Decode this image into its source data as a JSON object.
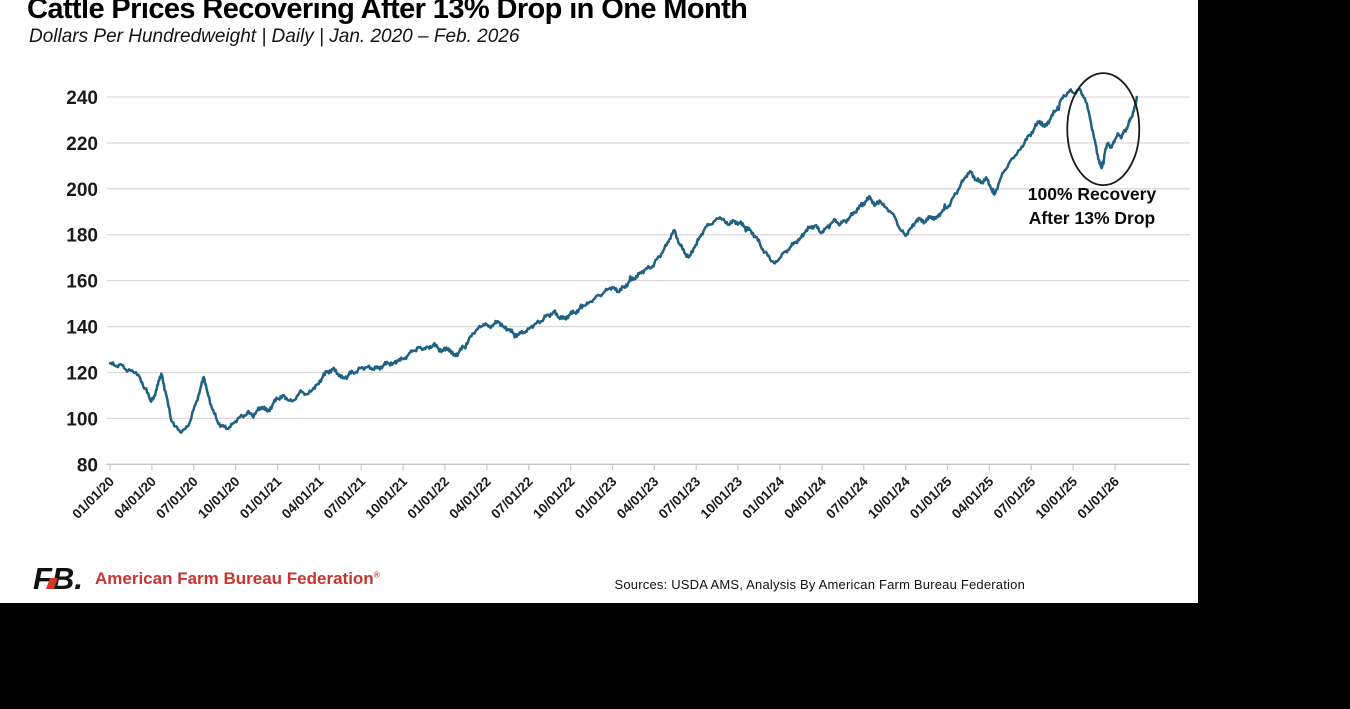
{
  "title": "Cattle Prices Recovering After 13% Drop in One Month",
  "subtitle": "Dollars Per Hundredweight | Daily | Jan. 2020 – Feb. 2026",
  "annotation": {
    "line1": "100% Recovery",
    "line2": "After 13% Drop"
  },
  "footer": {
    "logo_text": "FB.",
    "org_name": "American Farm Bureau Federation",
    "reg_mark": "®",
    "sources": "Sources: USDA AMS, Analysis By American Farm Bureau Federation"
  },
  "colors": {
    "line": "#1F6182",
    "grid": "#D9D9D9",
    "axis": "#C6C6C6",
    "tick_text": "#1a1a1a",
    "brand_red": "#C8352E",
    "annotation_ink": "#1a1a1a",
    "canvas": "#FFFFFF",
    "letterbox": "#000000"
  },
  "chart_data": {
    "type": "line",
    "title": "Cattle Prices Recovering After 13% Drop in One Month",
    "xlabel": "",
    "ylabel": "Dollars Per Hundredweight",
    "frequency": "Daily",
    "date_range": "Jan. 2020 – Feb. 2026",
    "ylim": [
      80,
      240
    ],
    "y_ticks": [
      240,
      220,
      200,
      180,
      160,
      140,
      120,
      100,
      80
    ],
    "x_tick_labels": [
      "01/01/20",
      "04/01/20",
      "07/01/20",
      "10/01/20",
      "01/01/21",
      "04/01/21",
      "07/01/21",
      "10/01/21",
      "01/01/22",
      "04/01/22",
      "07/01/22",
      "10/01/22",
      "01/01/23",
      "04/01/23",
      "07/01/23",
      "10/01/23",
      "01/01/24",
      "04/01/24",
      "07/01/24",
      "10/01/24",
      "01/01/25",
      "04/01/25",
      "07/01/25",
      "10/01/25",
      "01/01/26"
    ],
    "grid": "horizontal",
    "legend": "none",
    "annotations": [
      {
        "type": "ellipse",
        "t_center_years_from_2020": 5.93,
        "v_center": 226,
        "meaning": "circles the 13% drop (peak ~244 to low ~209) and recovery to ~240"
      },
      {
        "type": "text",
        "lines": [
          "100% Recovery",
          "After 13% Drop"
        ]
      }
    ],
    "series": [
      {
        "name": "Cattle price ($/cwt)",
        "x_unit": "years since 2020-01-01",
        "points": [
          [
            0,
            124
          ],
          [
            0.03,
            123
          ],
          [
            0.06,
            123.5
          ],
          [
            0.09,
            121.5
          ],
          [
            0.12,
            121
          ],
          [
            0.15,
            120
          ],
          [
            0.18,
            117.5
          ],
          [
            0.21,
            113
          ],
          [
            0.24,
            108
          ],
          [
            0.27,
            110
          ],
          [
            0.29,
            116.5
          ],
          [
            0.31,
            119
          ],
          [
            0.33,
            112
          ],
          [
            0.36,
            101
          ],
          [
            0.39,
            96.5
          ],
          [
            0.42,
            94
          ],
          [
            0.45,
            95.5
          ],
          [
            0.48,
            99
          ],
          [
            0.51,
            106
          ],
          [
            0.54,
            113
          ],
          [
            0.56,
            118
          ],
          [
            0.58,
            112
          ],
          [
            0.61,
            104
          ],
          [
            0.64,
            99
          ],
          [
            0.67,
            96.5
          ],
          [
            0.7,
            95.5
          ],
          [
            0.73,
            97.5
          ],
          [
            0.76,
            99.5
          ],
          [
            0.79,
            101
          ],
          [
            0.82,
            102.5
          ],
          [
            0.85,
            101
          ],
          [
            0.88,
            103.5
          ],
          [
            0.91,
            105
          ],
          [
            0.94,
            103
          ],
          [
            0.97,
            106
          ],
          [
            1,
            108.5
          ],
          [
            1.03,
            110
          ],
          [
            1.06,
            108
          ],
          [
            1.09,
            107.5
          ],
          [
            1.12,
            110
          ],
          [
            1.15,
            111.5
          ],
          [
            1.18,
            110.5
          ],
          [
            1.21,
            112.5
          ],
          [
            1.24,
            115
          ],
          [
            1.27,
            118
          ],
          [
            1.3,
            120.5
          ],
          [
            1.33,
            121.5
          ],
          [
            1.36,
            119.5
          ],
          [
            1.39,
            117.5
          ],
          [
            1.42,
            118.5
          ],
          [
            1.45,
            120
          ],
          [
            1.48,
            121
          ],
          [
            1.51,
            122
          ],
          [
            1.54,
            122.5
          ],
          [
            1.57,
            121.5
          ],
          [
            1.6,
            122
          ],
          [
            1.63,
            123
          ],
          [
            1.66,
            124
          ],
          [
            1.69,
            124
          ],
          [
            1.72,
            125
          ],
          [
            1.75,
            126
          ],
          [
            1.78,
            127.5
          ],
          [
            1.81,
            129.5
          ],
          [
            1.84,
            131
          ],
          [
            1.87,
            130
          ],
          [
            1.9,
            131
          ],
          [
            1.93,
            132
          ],
          [
            1.96,
            130.5
          ],
          [
            1.99,
            129.5
          ],
          [
            2.02,
            130.5
          ],
          [
            2.05,
            127.5
          ],
          [
            2.08,
            128.5
          ],
          [
            2.11,
            131
          ],
          [
            2.14,
            134
          ],
          [
            2.17,
            137
          ],
          [
            2.2,
            139.5
          ],
          [
            2.23,
            141
          ],
          [
            2.26,
            140
          ],
          [
            2.29,
            141
          ],
          [
            2.32,
            142
          ],
          [
            2.35,
            140
          ],
          [
            2.38,
            138.5
          ],
          [
            2.41,
            137
          ],
          [
            2.44,
            136.5
          ],
          [
            2.47,
            137.5
          ],
          [
            2.5,
            139
          ],
          [
            2.53,
            140.5
          ],
          [
            2.56,
            142
          ],
          [
            2.59,
            143.5
          ],
          [
            2.62,
            145
          ],
          [
            2.65,
            146.5
          ],
          [
            2.68,
            144
          ],
          [
            2.71,
            143.5
          ],
          [
            2.74,
            145
          ],
          [
            2.77,
            146
          ],
          [
            2.8,
            147.5
          ],
          [
            2.83,
            149
          ],
          [
            2.86,
            150.5
          ],
          [
            2.89,
            152
          ],
          [
            2.92,
            153.5
          ],
          [
            2.95,
            155
          ],
          [
            2.98,
            156.5
          ],
          [
            3.01,
            157
          ],
          [
            3.04,
            155
          ],
          [
            3.07,
            157.5
          ],
          [
            3.1,
            159.5
          ],
          [
            3.13,
            161
          ],
          [
            3.16,
            163
          ],
          [
            3.19,
            164.5
          ],
          [
            3.22,
            165.5
          ],
          [
            3.25,
            167.5
          ],
          [
            3.28,
            170.5
          ],
          [
            3.31,
            174
          ],
          [
            3.34,
            178
          ],
          [
            3.37,
            182
          ],
          [
            3.4,
            176
          ],
          [
            3.43,
            172
          ],
          [
            3.46,
            170.5
          ],
          [
            3.49,
            174.5
          ],
          [
            3.52,
            179
          ],
          [
            3.55,
            182.5
          ],
          [
            3.58,
            184.5
          ],
          [
            3.61,
            186
          ],
          [
            3.64,
            187.5
          ],
          [
            3.67,
            186
          ],
          [
            3.7,
            184.5
          ],
          [
            3.73,
            186
          ],
          [
            3.76,
            185
          ],
          [
            3.79,
            183.5
          ],
          [
            3.82,
            182
          ],
          [
            3.85,
            179.5
          ],
          [
            3.88,
            176
          ],
          [
            3.91,
            172.5
          ],
          [
            3.94,
            169.5
          ],
          [
            3.97,
            167.5
          ],
          [
            4,
            170
          ],
          [
            4.03,
            172.5
          ],
          [
            4.06,
            174.5
          ],
          [
            4.09,
            176.5
          ],
          [
            4.12,
            178.5
          ],
          [
            4.15,
            181
          ],
          [
            4.18,
            183.5
          ],
          [
            4.21,
            184
          ],
          [
            4.24,
            181
          ],
          [
            4.27,
            182.5
          ],
          [
            4.3,
            184.5
          ],
          [
            4.33,
            186.5
          ],
          [
            4.36,
            184.5
          ],
          [
            4.39,
            186
          ],
          [
            4.42,
            188
          ],
          [
            4.45,
            190
          ],
          [
            4.48,
            192.5
          ],
          [
            4.51,
            194.5
          ],
          [
            4.54,
            196
          ],
          [
            4.57,
            193
          ],
          [
            4.6,
            194.5
          ],
          [
            4.63,
            192
          ],
          [
            4.66,
            190
          ],
          [
            4.69,
            187
          ],
          [
            4.72,
            182
          ],
          [
            4.75,
            179.5
          ],
          [
            4.78,
            183
          ],
          [
            4.81,
            185.5
          ],
          [
            4.84,
            187
          ],
          [
            4.87,
            185.5
          ],
          [
            4.9,
            188
          ],
          [
            4.93,
            187
          ],
          [
            4.96,
            189.5
          ],
          [
            4.99,
            191.5
          ],
          [
            5.02,
            194
          ],
          [
            5.05,
            198
          ],
          [
            5.08,
            202
          ],
          [
            5.11,
            205.5
          ],
          [
            5.14,
            207.5
          ],
          [
            5.17,
            204
          ],
          [
            5.2,
            202.5
          ],
          [
            5.23,
            205
          ],
          [
            5.26,
            200
          ],
          [
            5.28,
            197.5
          ],
          [
            5.31,
            203
          ],
          [
            5.34,
            208
          ],
          [
            5.37,
            211.5
          ],
          [
            5.4,
            214
          ],
          [
            5.43,
            217
          ],
          [
            5.46,
            220
          ],
          [
            5.49,
            223.5
          ],
          [
            5.52,
            226.5
          ],
          [
            5.55,
            229.5
          ],
          [
            5.58,
            227
          ],
          [
            5.61,
            230
          ],
          [
            5.64,
            233.5
          ],
          [
            5.67,
            237.5
          ],
          [
            5.7,
            240.5
          ],
          [
            5.73,
            243
          ],
          [
            5.76,
            241.5
          ],
          [
            5.79,
            243.5
          ],
          [
            5.82,
            239.5
          ],
          [
            5.85,
            231
          ],
          [
            5.88,
            221
          ],
          [
            5.9,
            213
          ],
          [
            5.92,
            209
          ],
          [
            5.94,
            216
          ],
          [
            5.96,
            220
          ],
          [
            5.98,
            218
          ],
          [
            6,
            221.5
          ],
          [
            6.02,
            224
          ],
          [
            6.04,
            222.5
          ],
          [
            6.06,
            225.5
          ],
          [
            6.08,
            228
          ],
          [
            6.1,
            231.5
          ],
          [
            6.12,
            236
          ],
          [
            6.13,
            240
          ]
        ]
      }
    ]
  }
}
